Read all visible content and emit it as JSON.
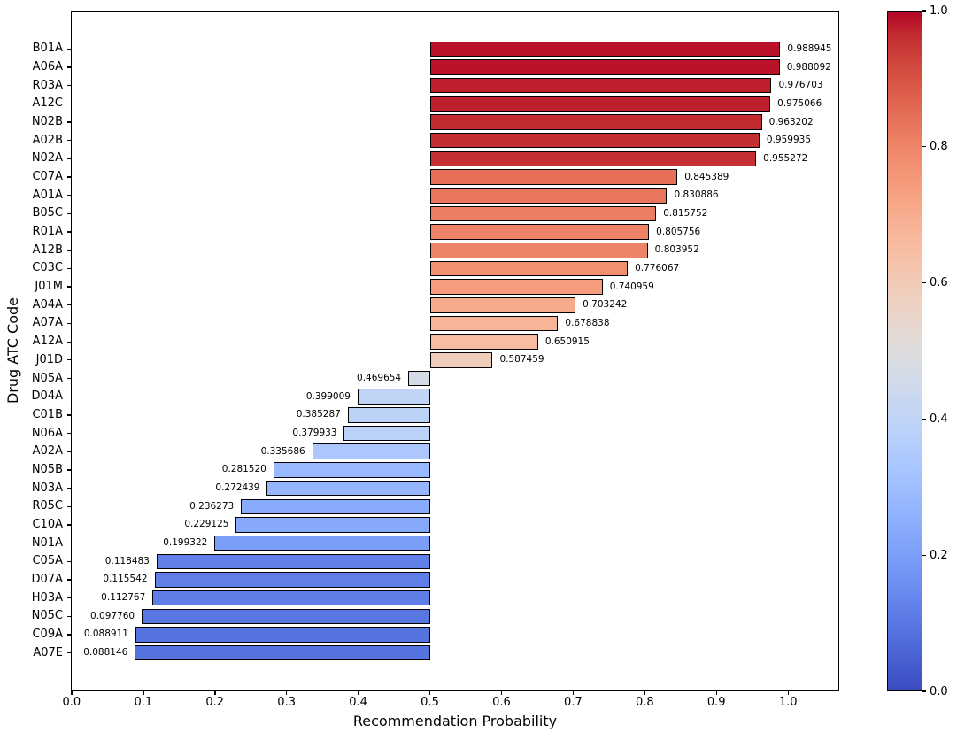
{
  "chart_data": {
    "type": "bar",
    "orientation": "horizontal",
    "title": "",
    "xlabel": "Recommendation Probability",
    "ylabel": "Drug ATC Code",
    "xlim": [
      0,
      1.07
    ],
    "baseline": 0.5,
    "grid": false,
    "legend": "none",
    "categories": [
      "B01A",
      "A06A",
      "R03A",
      "A12C",
      "N02B",
      "A02B",
      "N02A",
      "C07A",
      "A01A",
      "B05C",
      "R01A",
      "A12B",
      "C03C",
      "J01M",
      "A04A",
      "A07A",
      "A12A",
      "J01D",
      "N05A",
      "D04A",
      "C01B",
      "N06A",
      "A02A",
      "N05B",
      "N03A",
      "R05C",
      "C10A",
      "N01A",
      "C05A",
      "D07A",
      "H03A",
      "N05C",
      "C09A",
      "A07E"
    ],
    "values": [
      0.988945,
      0.988092,
      0.976703,
      0.975066,
      0.963202,
      0.959935,
      0.955272,
      0.845389,
      0.830886,
      0.815752,
      0.805756,
      0.803952,
      0.776067,
      0.740959,
      0.703242,
      0.678838,
      0.650915,
      0.587459,
      0.469654,
      0.399009,
      0.385287,
      0.379933,
      0.335686,
      0.28152,
      0.272439,
      0.236273,
      0.229125,
      0.199322,
      0.118483,
      0.115542,
      0.112767,
      0.09776,
      0.088911,
      0.088146
    ],
    "value_labels": [
      "0.988945",
      "0.988092",
      "0.976703",
      "0.975066",
      "0.963202",
      "0.959935",
      "0.955272",
      "0.845389",
      "0.830886",
      "0.815752",
      "0.805756",
      "0.803952",
      "0.776067",
      "0.740959",
      "0.703242",
      "0.678838",
      "0.650915",
      "0.587459",
      "0.469654",
      "0.399009",
      "0.385287",
      "0.379933",
      "0.335686",
      "0.281520",
      "0.272439",
      "0.236273",
      "0.229125",
      "0.199322",
      "0.118483",
      "0.115542",
      "0.112767",
      "0.097760",
      "0.088911",
      "0.088146"
    ],
    "x_ticks": [
      "0.0",
      "0.1",
      "0.2",
      "0.3",
      "0.4",
      "0.5",
      "0.6",
      "0.7",
      "0.8",
      "0.9",
      "1.0"
    ],
    "colorbar": {
      "min": 0.0,
      "max": 1.0,
      "ticks": [
        "0.0",
        "0.2",
        "0.4",
        "0.6",
        "0.8",
        "1.0"
      ],
      "colormap": "coolwarm"
    },
    "colormap_stops": [
      "#3b4cc0",
      "#445acc",
      "#4d68d7",
      "#5775e1",
      "#6282ea",
      "#6c8ef1",
      "#779af7",
      "#82a5fb",
      "#8db0fe",
      "#98b9ff",
      "#a3c2ff",
      "#aec9fd",
      "#b8d0f9",
      "#c2d5f4",
      "#ccd9ee",
      "#d5dbe6",
      "#dddddd",
      "#e5d8d1",
      "#ecd3c5",
      "#f1ccb9",
      "#f5c4ad",
      "#f7bba0",
      "#f7b194",
      "#f7a687",
      "#f49a7b",
      "#f18d6f",
      "#ec7f63",
      "#e57058",
      "#de604d",
      "#d55042",
      "#cb3e38",
      "#c0282f",
      "#b40426"
    ],
    "colors": {
      "background": "#ffffff",
      "text": "#000000",
      "bar_edge": "#000000",
      "axis": "#000000"
    }
  }
}
